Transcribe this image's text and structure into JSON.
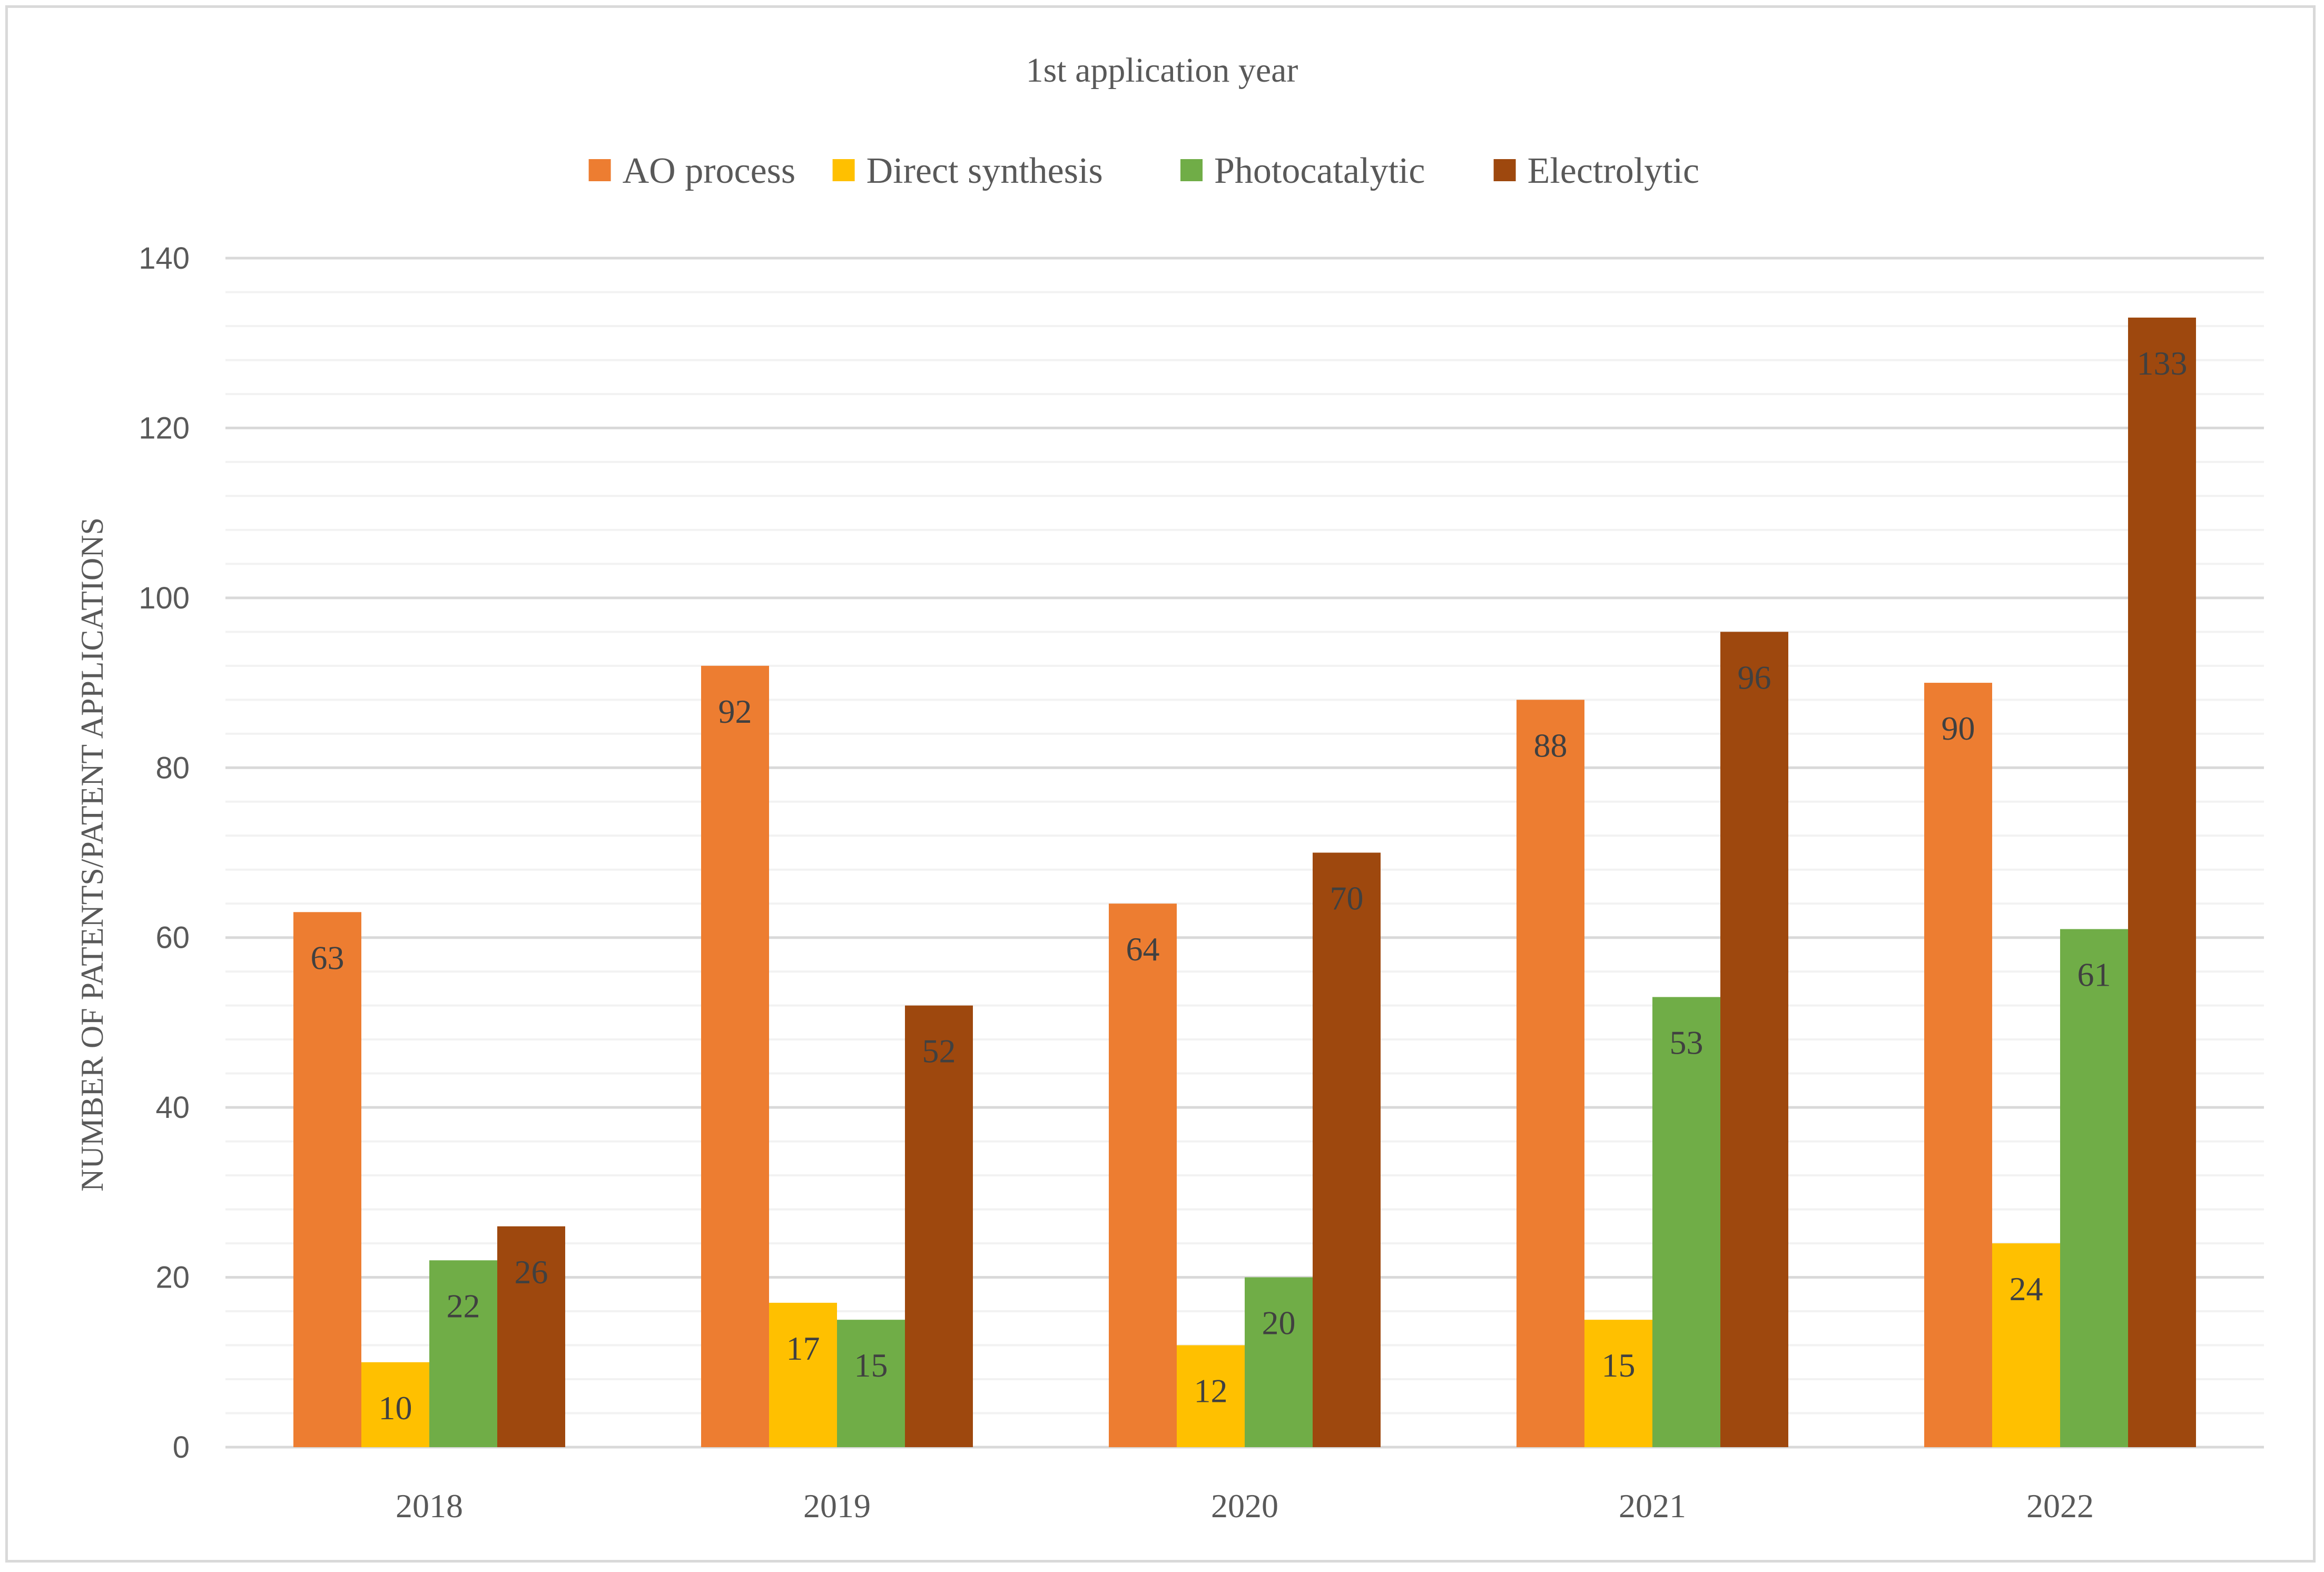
{
  "chart_data": {
    "type": "bar",
    "title": "1st application year",
    "xlabel": "",
    "ylabel": "NUMBER OF PATENTS/PATENT APPLICATIONS",
    "categories": [
      "2018",
      "2019",
      "2020",
      "2021",
      "2022"
    ],
    "series": [
      {
        "name": "AO process",
        "color": "#ed7d31",
        "values": [
          63,
          92,
          64,
          88,
          90
        ]
      },
      {
        "name": "Direct synthesis",
        "color": "#ffc000",
        "values": [
          10,
          17,
          12,
          15,
          24
        ]
      },
      {
        "name": "Photocatalytic",
        "color": "#70ad47",
        "values": [
          22,
          15,
          20,
          53,
          61
        ]
      },
      {
        "name": "Electrolytic",
        "color": "#9e480e",
        "values": [
          26,
          52,
          70,
          96,
          133
        ]
      }
    ],
    "ylim": [
      0,
      140
    ],
    "yticks": [
      "0",
      "20",
      "40",
      "60",
      "80",
      "100",
      "120",
      "140"
    ],
    "major_step": 20,
    "minor_step": 4,
    "grid": true,
    "legend_position": "top",
    "data_labels": true,
    "label_color": "#404040",
    "axis_color": "#595959",
    "gridline_color": "#d9d9d9",
    "minor_gridline_color": "#f2f2f2"
  }
}
